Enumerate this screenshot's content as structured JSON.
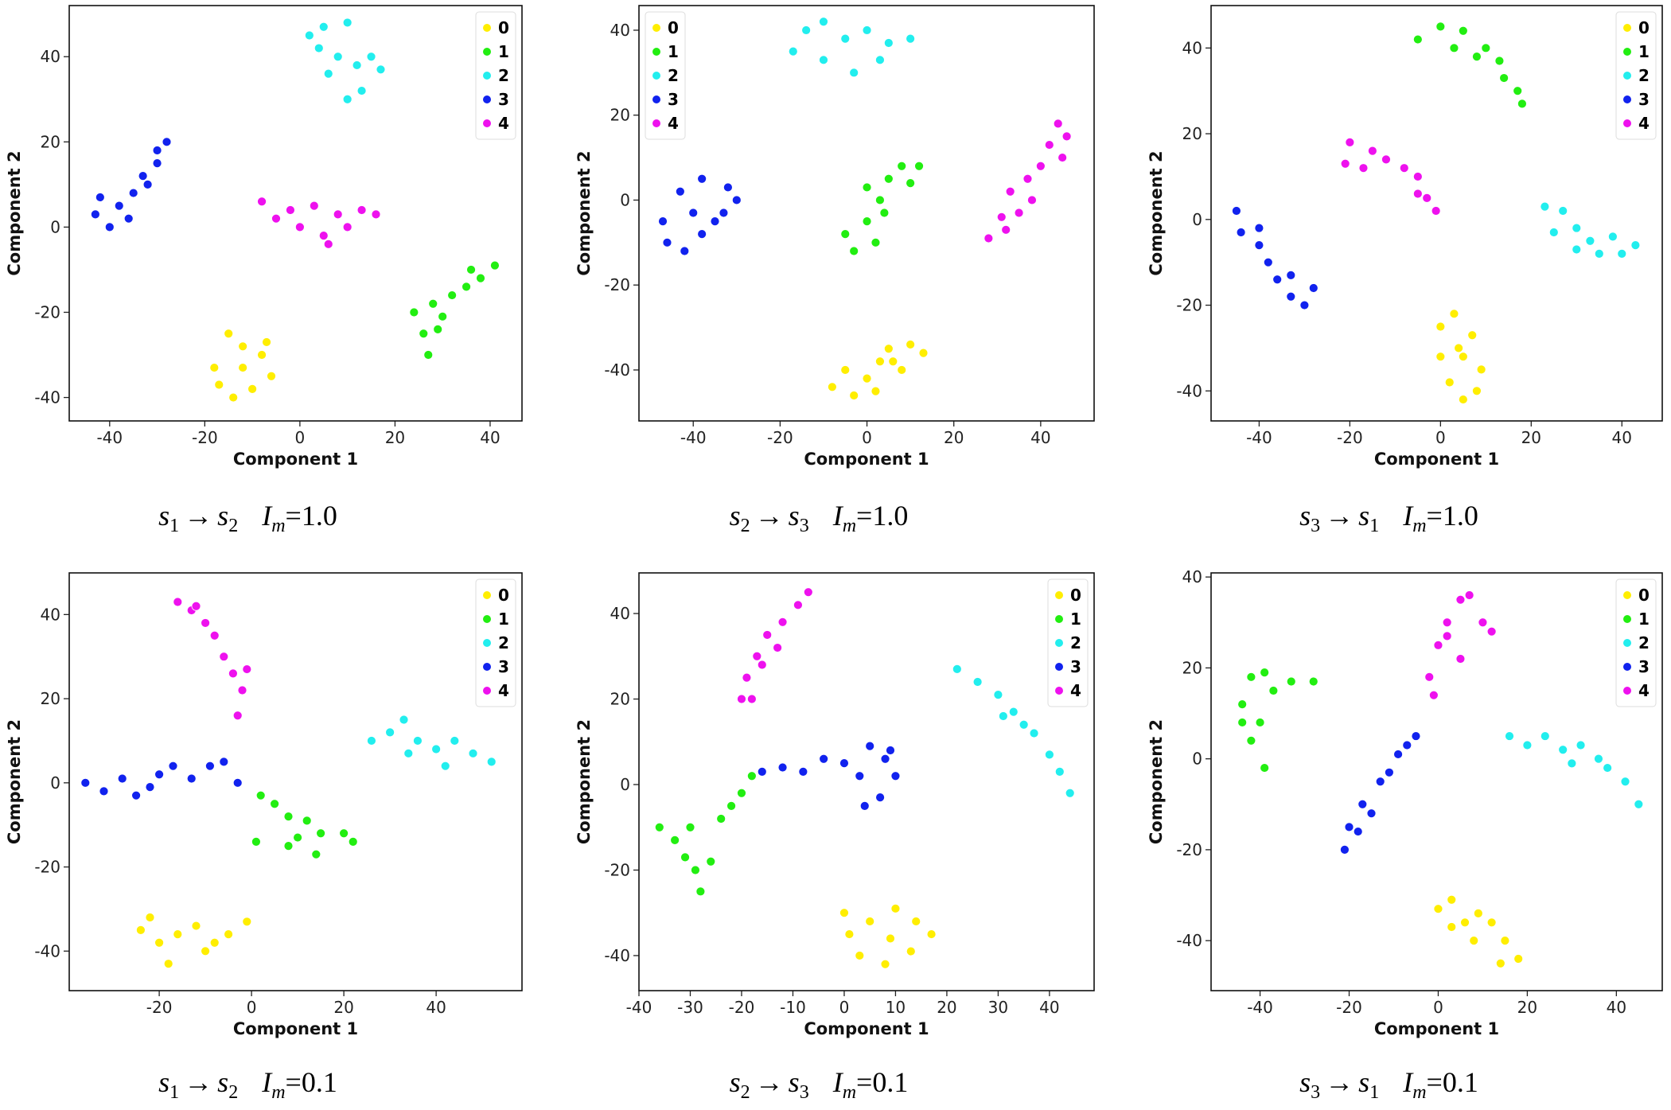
{
  "chart_data": [
    {
      "type": "scatter",
      "xlabel": "Component 1",
      "ylabel": "Component 2",
      "xlim": [
        -48.5,
        46.7
      ],
      "ylim": [
        -45.5,
        52
      ],
      "xticks": [
        -40,
        -20,
        0,
        20,
        40
      ],
      "yticks": [
        -40,
        -20,
        0,
        20,
        40
      ],
      "legend": "upper right",
      "series": [
        {
          "name": "0",
          "color": "#ffee00",
          "x": [
            -18,
            -15,
            -12,
            -8,
            -6,
            -10,
            -14,
            -17,
            -12,
            -7
          ],
          "y": [
            -33,
            -25,
            -28,
            -30,
            -35,
            -38,
            -40,
            -37,
            -33,
            -27
          ]
        },
        {
          "name": "1",
          "color": "#22ee11",
          "x": [
            27,
            26,
            24,
            28,
            30,
            32,
            35,
            38,
            41,
            36,
            29
          ],
          "y": [
            -30,
            -25,
            -20,
            -18,
            -21,
            -16,
            -14,
            -12,
            -9,
            -10,
            -24
          ]
        },
        {
          "name": "2",
          "color": "#22eeee",
          "x": [
            2,
            5,
            10,
            8,
            12,
            15,
            17,
            13,
            10,
            6,
            4
          ],
          "y": [
            45,
            47,
            48,
            40,
            38,
            40,
            37,
            32,
            30,
            36,
            42
          ]
        },
        {
          "name": "3",
          "color": "#1122ee",
          "x": [
            -43,
            -40,
            -42,
            -38,
            -35,
            -33,
            -30,
            -28,
            -30,
            -36,
            -32
          ],
          "y": [
            3,
            0,
            7,
            5,
            8,
            12,
            15,
            20,
            18,
            2,
            10
          ]
        },
        {
          "name": "4",
          "color": "#ee11ee",
          "x": [
            -8,
            -5,
            -2,
            0,
            3,
            5,
            8,
            10,
            13,
            16,
            6
          ],
          "y": [
            6,
            2,
            4,
            0,
            5,
            -2,
            3,
            0,
            4,
            3,
            -4
          ]
        }
      ],
      "caption": {
        "source": "s",
        "source_index": "1",
        "arrow": "→",
        "target": "s",
        "target_index": "2",
        "param": "I",
        "param_index": "m",
        "value": "=1.0"
      }
    },
    {
      "type": "scatter",
      "xlabel": "Component 1",
      "ylabel": "Component 2",
      "xlim": [
        -52.5,
        52.3
      ],
      "ylim": [
        -52,
        45.8
      ],
      "xticks": [
        -40,
        -20,
        0,
        20,
        40
      ],
      "yticks": [
        -40,
        -20,
        0,
        20,
        40
      ],
      "legend": "upper left",
      "series": [
        {
          "name": "0",
          "color": "#ffee00",
          "x": [
            -8,
            -5,
            0,
            3,
            5,
            10,
            13,
            8,
            2,
            -3,
            6
          ],
          "y": [
            -44,
            -40,
            -42,
            -38,
            -35,
            -34,
            -36,
            -40,
            -45,
            -46,
            -38
          ]
        },
        {
          "name": "1",
          "color": "#22ee11",
          "x": [
            -5,
            -3,
            0,
            2,
            3,
            0,
            5,
            8,
            12,
            10,
            4
          ],
          "y": [
            -8,
            -12,
            -5,
            -10,
            0,
            3,
            5,
            8,
            8,
            4,
            -3
          ]
        },
        {
          "name": "2",
          "color": "#22eeee",
          "x": [
            -17,
            -14,
            -10,
            -5,
            0,
            5,
            10,
            3,
            -3,
            -10
          ],
          "y": [
            35,
            40,
            42,
            38,
            40,
            37,
            38,
            33,
            30,
            33
          ]
        },
        {
          "name": "3",
          "color": "#1122ee",
          "x": [
            -47,
            -46,
            -42,
            -38,
            -33,
            -30,
            -32,
            -38,
            -43,
            -40,
            -35
          ],
          "y": [
            -5,
            -10,
            -12,
            -8,
            -3,
            0,
            3,
            5,
            2,
            -3,
            -5
          ]
        },
        {
          "name": "4",
          "color": "#ee11ee",
          "x": [
            28,
            32,
            35,
            33,
            37,
            40,
            42,
            44,
            46,
            45,
            38,
            31
          ],
          "y": [
            -9,
            -7,
            -3,
            2,
            5,
            8,
            13,
            18,
            15,
            10,
            0,
            -4
          ]
        }
      ],
      "caption": {
        "source": "s",
        "source_index": "2",
        "arrow": "→",
        "target": "s",
        "target_index": "3",
        "param": "I",
        "param_index": "m",
        "value": "=1.0"
      }
    },
    {
      "type": "scatter",
      "xlabel": "Component 1",
      "ylabel": "Component 2",
      "xlim": [
        -50.6,
        48.9
      ],
      "ylim": [
        -47,
        49.9
      ],
      "xticks": [
        -40,
        -20,
        0,
        20,
        40
      ],
      "yticks": [
        -40,
        -20,
        0,
        20,
        40
      ],
      "legend": "upper right",
      "series": [
        {
          "name": "0",
          "color": "#ffee00",
          "x": [
            0,
            3,
            7,
            5,
            9,
            8,
            5,
            2,
            0,
            4
          ],
          "y": [
            -25,
            -22,
            -27,
            -32,
            -35,
            -40,
            -42,
            -38,
            -32,
            -30
          ]
        },
        {
          "name": "1",
          "color": "#22ee11",
          "x": [
            -5,
            0,
            5,
            10,
            13,
            14,
            17,
            18,
            8,
            3
          ],
          "y": [
            42,
            45,
            44,
            40,
            37,
            33,
            30,
            27,
            38,
            40
          ]
        },
        {
          "name": "2",
          "color": "#22eeee",
          "x": [
            23,
            27,
            25,
            30,
            33,
            35,
            40,
            43,
            38,
            30
          ],
          "y": [
            3,
            2,
            -3,
            -2,
            -5,
            -8,
            -8,
            -6,
            -4,
            -7
          ]
        },
        {
          "name": "3",
          "color": "#1122ee",
          "x": [
            -45,
            -44,
            -40,
            -38,
            -36,
            -33,
            -30,
            -28,
            -33,
            -40
          ],
          "y": [
            2,
            -3,
            -6,
            -10,
            -14,
            -18,
            -20,
            -16,
            -13,
            -2
          ]
        },
        {
          "name": "4",
          "color": "#ee11ee",
          "x": [
            -20,
            -21,
            -15,
            -12,
            -8,
            -5,
            -3,
            -1,
            -5,
            -17
          ],
          "y": [
            18,
            13,
            16,
            14,
            12,
            10,
            5,
            2,
            6,
            12
          ]
        }
      ],
      "caption": {
        "source": "s",
        "source_index": "3",
        "arrow": "→",
        "target": "s",
        "target_index": "1",
        "param": "I",
        "param_index": "m",
        "value": "=1.0"
      }
    },
    {
      "type": "scatter",
      "xlabel": "Component 1",
      "ylabel": "Component 2",
      "xlim": [
        -39.5,
        58.6
      ],
      "ylim": [
        -49.4,
        49.9
      ],
      "xticks": [
        -20,
        0,
        20,
        40
      ],
      "yticks": [
        -40,
        -20,
        0,
        20,
        40
      ],
      "legend": "upper right",
      "series": [
        {
          "name": "0",
          "color": "#ffee00",
          "x": [
            -24,
            -22,
            -20,
            -16,
            -12,
            -8,
            -5,
            -1,
            -18,
            -10
          ],
          "y": [
            -35,
            -32,
            -38,
            -36,
            -34,
            -38,
            -36,
            -33,
            -43,
            -40
          ]
        },
        {
          "name": "1",
          "color": "#22ee11",
          "x": [
            2,
            5,
            8,
            12,
            15,
            20,
            22,
            14,
            8,
            1,
            10
          ],
          "y": [
            -3,
            -5,
            -8,
            -9,
            -12,
            -12,
            -14,
            -17,
            -15,
            -14,
            -13
          ]
        },
        {
          "name": "2",
          "color": "#22eeee",
          "x": [
            26,
            30,
            33,
            36,
            40,
            44,
            48,
            52,
            42,
            34
          ],
          "y": [
            10,
            12,
            15,
            10,
            8,
            10,
            7,
            5,
            4,
            7
          ]
        },
        {
          "name": "3",
          "color": "#1122ee",
          "x": [
            -36,
            -32,
            -28,
            -25,
            -20,
            -17,
            -13,
            -9,
            -6,
            -3,
            -22
          ],
          "y": [
            0,
            -2,
            1,
            -3,
            2,
            4,
            1,
            4,
            5,
            0,
            -1
          ]
        },
        {
          "name": "4",
          "color": "#ee11ee",
          "x": [
            -16,
            -13,
            -10,
            -8,
            -6,
            -4,
            -2,
            -3,
            -1,
            -12
          ],
          "y": [
            43,
            41,
            38,
            35,
            30,
            26,
            22,
            16,
            27,
            42
          ]
        }
      ],
      "caption": {
        "source": "s",
        "source_index": "1",
        "arrow": "→",
        "target": "s",
        "target_index": "2",
        "param": "I",
        "param_index": "m",
        "value": "=0.1"
      }
    },
    {
      "type": "scatter",
      "xlabel": "Component 1",
      "ylabel": "Component 2",
      "xlim": [
        -40,
        48.7
      ],
      "ylim": [
        -48.2,
        49.5
      ],
      "xticks": [
        -40,
        -30,
        -20,
        -10,
        0,
        10,
        20,
        30,
        40
      ],
      "yticks": [
        -40,
        -20,
        0,
        20,
        40
      ],
      "legend": "upper right",
      "series": [
        {
          "name": "0",
          "color": "#ffee00",
          "x": [
            0,
            5,
            10,
            14,
            17,
            13,
            8,
            3,
            1,
            9
          ],
          "y": [
            -30,
            -32,
            -29,
            -32,
            -35,
            -39,
            -42,
            -40,
            -35,
            -36
          ]
        },
        {
          "name": "1",
          "color": "#22ee11",
          "x": [
            -36,
            -33,
            -31,
            -29,
            -28,
            -26,
            -24,
            -22,
            -20,
            -18,
            -30
          ],
          "y": [
            -10,
            -13,
            -17,
            -20,
            -25,
            -18,
            -8,
            -5,
            -2,
            2,
            -10
          ]
        },
        {
          "name": "2",
          "color": "#22eeee",
          "x": [
            22,
            26,
            30,
            33,
            35,
            37,
            40,
            42,
            44,
            31
          ],
          "y": [
            27,
            24,
            21,
            17,
            14,
            12,
            7,
            3,
            -2,
            16
          ]
        },
        {
          "name": "3",
          "color": "#1122ee",
          "x": [
            -16,
            -12,
            -8,
            -4,
            0,
            3,
            5,
            8,
            10,
            7,
            4,
            9
          ],
          "y": [
            3,
            4,
            3,
            6,
            5,
            2,
            9,
            6,
            2,
            -3,
            -5,
            8
          ]
        },
        {
          "name": "4",
          "color": "#ee11ee",
          "x": [
            -20,
            -19,
            -17,
            -15,
            -12,
            -9,
            -7,
            -13,
            -18,
            -16
          ],
          "y": [
            20,
            25,
            30,
            35,
            38,
            42,
            45,
            32,
            20,
            28
          ]
        }
      ],
      "caption": {
        "source": "s",
        "source_index": "2",
        "arrow": "→",
        "target": "s",
        "target_index": "3",
        "param": "I",
        "param_index": "m",
        "value": "=0.1"
      }
    },
    {
      "type": "scatter",
      "xlabel": "Component 1",
      "ylabel": "Component 2",
      "xlim": [
        -51,
        50.3
      ],
      "ylim": [
        -51,
        40.9
      ],
      "xticks": [
        -40,
        -20,
        0,
        20,
        40
      ],
      "yticks": [
        -40,
        -20,
        0,
        20,
        40
      ],
      "legend": "upper right",
      "series": [
        {
          "name": "0",
          "color": "#ffee00",
          "x": [
            0,
            3,
            6,
            9,
            12,
            15,
            18,
            14,
            8,
            3
          ],
          "y": [
            -33,
            -31,
            -36,
            -34,
            -36,
            -40,
            -44,
            -45,
            -40,
            -37
          ]
        },
        {
          "name": "1",
          "color": "#22ee11",
          "x": [
            -44,
            -42,
            -39,
            -37,
            -33,
            -28,
            -40,
            -42,
            -39,
            -44
          ],
          "y": [
            12,
            18,
            19,
            15,
            17,
            17,
            8,
            4,
            -2,
            8
          ]
        },
        {
          "name": "2",
          "color": "#22eeee",
          "x": [
            16,
            20,
            24,
            28,
            32,
            36,
            38,
            42,
            45,
            30
          ],
          "y": [
            5,
            3,
            5,
            2,
            3,
            0,
            -2,
            -5,
            -10,
            -1
          ]
        },
        {
          "name": "3",
          "color": "#1122ee",
          "x": [
            -21,
            -20,
            -17,
            -15,
            -13,
            -11,
            -9,
            -7,
            -5,
            -18
          ],
          "y": [
            -20,
            -15,
            -10,
            -12,
            -5,
            -3,
            1,
            3,
            5,
            -16
          ]
        },
        {
          "name": "4",
          "color": "#ee11ee",
          "x": [
            -2,
            0,
            2,
            5,
            7,
            10,
            12,
            5,
            2,
            -1
          ],
          "y": [
            18,
            25,
            30,
            35,
            36,
            30,
            28,
            22,
            27,
            14
          ]
        }
      ],
      "caption": {
        "source": "s",
        "source_index": "3",
        "arrow": "→",
        "target": "s",
        "target_index": "1",
        "param": "I",
        "param_index": "m",
        "value": "=0.1"
      }
    }
  ]
}
